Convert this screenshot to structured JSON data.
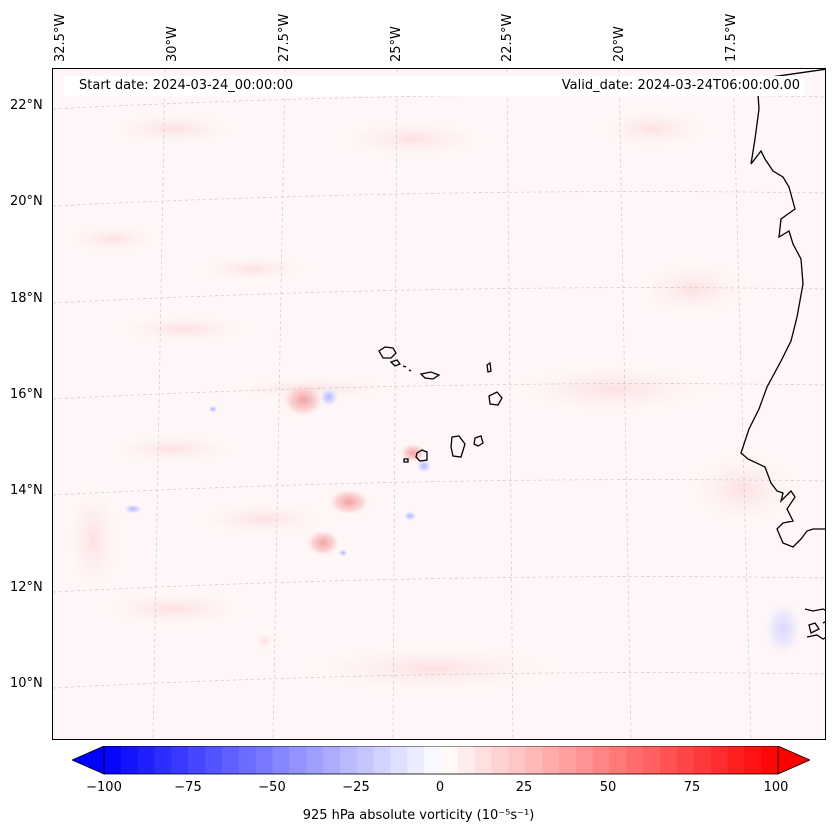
{
  "header": {
    "start_date": "Start date: 2024-03-24_00:00:00",
    "valid_date": "Valid_date: 2024-03-24T06:00:00.00"
  },
  "longitude_labels": [
    "32.5°W",
    "30°W",
    "27.5°W",
    "25°W",
    "22.5°W",
    "20°W",
    "17.5°W"
  ],
  "latitude_labels": [
    "22°N",
    "20°N",
    "18°N",
    "16°N",
    "14°N",
    "12°N",
    "10°N"
  ],
  "colorbar": {
    "label": "925 hPa absolute vorticity (10⁻⁵s⁻¹)",
    "ticks": [
      "−100",
      "−75",
      "−50",
      "−25",
      "0",
      "25",
      "50",
      "75",
      "100"
    ],
    "min": -100,
    "max": 100,
    "colormap": "bwr",
    "extend": "both"
  },
  "colors": {
    "negative": "#0000ff",
    "neutral": "#ffffff",
    "positive": "#ff0000",
    "coastline": "#000000"
  }
}
